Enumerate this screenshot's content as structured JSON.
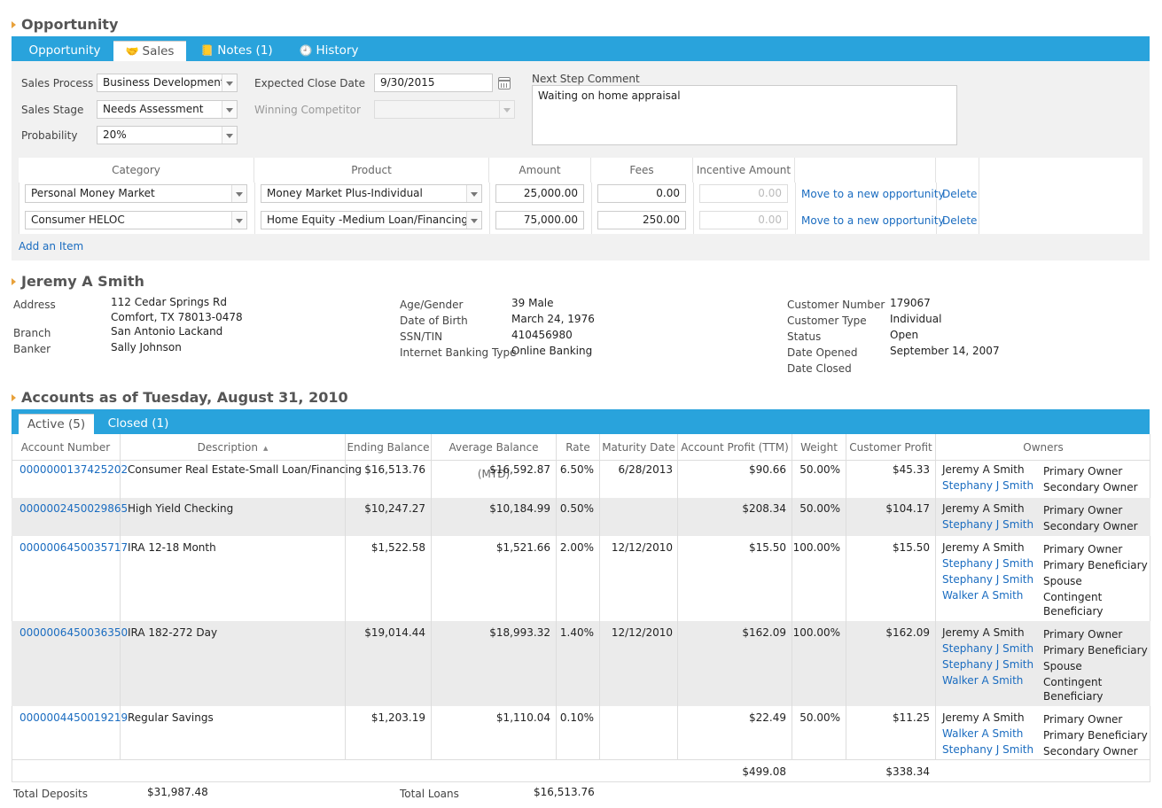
{
  "opportunity": {
    "title": "Opportunity",
    "tabs": [
      {
        "label": "Opportunity",
        "icon": "",
        "active": false
      },
      {
        "label": "Sales",
        "icon": "handshake-icon",
        "active": true
      },
      {
        "label": "Notes (1)",
        "icon": "notes-icon",
        "active": false
      },
      {
        "label": "History",
        "icon": "history-icon",
        "active": false
      }
    ],
    "sales_process_label": "Sales Process",
    "sales_process_value": "Business Development",
    "sales_stage_label": "Sales Stage",
    "sales_stage_value": "Needs Assessment",
    "probability_label": "Probability",
    "probability_value": "20%",
    "expected_close_label": "Expected Close Date",
    "expected_close_value": "9/30/2015",
    "winning_competitor_label": "Winning Competitor",
    "winning_competitor_value": "",
    "next_step_label": "Next Step Comment",
    "next_step_value": "Waiting on home appraisal",
    "items_headers": [
      "Category",
      "Product",
      "Amount",
      "Fees",
      "Incentive Amount"
    ],
    "items": [
      {
        "category": "Personal Money Market",
        "product": "Money Market Plus-Individual",
        "amount": "25,000.00",
        "fees": "0.00",
        "incentive": "0.00",
        "move": "Move to a new opportunity",
        "delete": "Delete"
      },
      {
        "category": "Consumer HELOC",
        "product": "Home Equity -Medium Loan/Financing",
        "amount": "75,000.00",
        "fees": "250.00",
        "incentive": "0.00",
        "move": "Move to a new opportunity",
        "delete": "Delete"
      }
    ],
    "add_item": "Add an Item"
  },
  "customer": {
    "name": "Jeremy A Smith",
    "address_label": "Address",
    "address_line1": "112 Cedar Springs Rd",
    "address_line2": "Comfort, TX 78013-0478",
    "branch_label": "Branch",
    "branch_value": "San Antonio Lackand",
    "banker_label": "Banker",
    "banker_value": "Sally Johnson",
    "age_label": "Age/Gender",
    "age_value": "39 Male",
    "dob_label": "Date of Birth",
    "dob_value": "March 24, 1976",
    "ssn_label": "SSN/TIN",
    "ssn_value": "410456980",
    "ibt_label": "Internet Banking Type",
    "ibt_value": "Online Banking",
    "custnum_label": "Customer Number",
    "custnum_value": "179067",
    "custtype_label": "Customer Type",
    "custtype_value": "Individual",
    "status_label": "Status",
    "status_value": "Open",
    "opened_label": "Date Opened",
    "opened_value": "September 14, 2007",
    "closed_label": "Date Closed",
    "closed_value": ""
  },
  "accounts": {
    "title": "Accounts as of Tuesday, August 31, 2010",
    "tabs": [
      {
        "label": "Active (5)",
        "active": true
      },
      {
        "label": "Closed (1)",
        "active": false
      }
    ],
    "headers": [
      "Account Number",
      "Description",
      "Ending Balance",
      "Average Balance (MTD)",
      "Rate",
      "Maturity Date",
      "Account Profit (TTM)",
      "Weight",
      "Customer Profit",
      "Owners"
    ],
    "rows": [
      {
        "number": "0000000137425202",
        "description": "Consumer Real Estate-Small Loan/Financing",
        "ending": "$16,513.76",
        "average": "$16,592.87",
        "rate": "6.50%",
        "maturity": "6/28/2013",
        "profit": "$90.66",
        "weight": "50.00%",
        "customer_profit": "$45.33",
        "owners": [
          {
            "name": "Jeremy A Smith",
            "link": false
          },
          {
            "name": "Stephany J Smith",
            "link": true
          }
        ],
        "roles": [
          "Primary Owner",
          "Secondary Owner"
        ]
      },
      {
        "number": "0000002450029865",
        "description": "High Yield Checking",
        "ending": "$10,247.27",
        "average": "$10,184.99",
        "rate": "0.50%",
        "maturity": "",
        "profit": "$208.34",
        "weight": "50.00%",
        "customer_profit": "$104.17",
        "owners": [
          {
            "name": "Jeremy A Smith",
            "link": false
          },
          {
            "name": "Stephany J Smith",
            "link": true
          }
        ],
        "roles": [
          "Primary Owner",
          "Secondary Owner"
        ]
      },
      {
        "number": "0000006450035717",
        "description": "IRA 12-18 Month",
        "ending": "$1,522.58",
        "average": "$1,521.66",
        "rate": "2.00%",
        "maturity": "12/12/2010",
        "profit": "$15.50",
        "weight": "100.00%",
        "customer_profit": "$15.50",
        "owners": [
          {
            "name": "Jeremy A Smith",
            "link": false
          },
          {
            "name": "Stephany J Smith",
            "link": true
          },
          {
            "name": "Stephany J Smith",
            "link": true
          },
          {
            "name": "Walker A Smith",
            "link": true
          }
        ],
        "roles": [
          "Primary Owner",
          "Primary Beneficiary",
          "Spouse",
          "Contingent",
          "Beneficiary"
        ]
      },
      {
        "number": "0000006450036350",
        "description": "IRA 182-272 Day",
        "ending": "$19,014.44",
        "average": "$18,993.32",
        "rate": "1.40%",
        "maturity": "12/12/2010",
        "profit": "$162.09",
        "weight": "100.00%",
        "customer_profit": "$162.09",
        "owners": [
          {
            "name": "Jeremy A Smith",
            "link": false
          },
          {
            "name": "Stephany J Smith",
            "link": true
          },
          {
            "name": "Stephany J Smith",
            "link": true
          },
          {
            "name": "Walker A Smith",
            "link": true
          }
        ],
        "roles": [
          "Primary Owner",
          "Primary Beneficiary",
          "Spouse",
          "Contingent",
          "Beneficiary"
        ]
      },
      {
        "number": "0000004450019219",
        "description": "Regular Savings",
        "ending": "$1,203.19",
        "average": "$1,110.04",
        "rate": "0.10%",
        "maturity": "",
        "profit": "$22.49",
        "weight": "50.00%",
        "customer_profit": "$11.25",
        "owners": [
          {
            "name": "Jeremy A Smith",
            "link": false
          },
          {
            "name": "Walker A Smith",
            "link": true
          },
          {
            "name": "Stephany J Smith",
            "link": true
          }
        ],
        "roles": [
          "Primary Owner",
          "Primary Beneficiary",
          "Secondary Owner"
        ]
      }
    ],
    "total_profit": "$499.08",
    "total_customer_profit": "$338.34",
    "total_deposits_label": "Total Deposits",
    "total_deposits_value": "$31,987.48",
    "total_loans_label": "Total Loans",
    "total_loans_value": "$16,513.76"
  }
}
